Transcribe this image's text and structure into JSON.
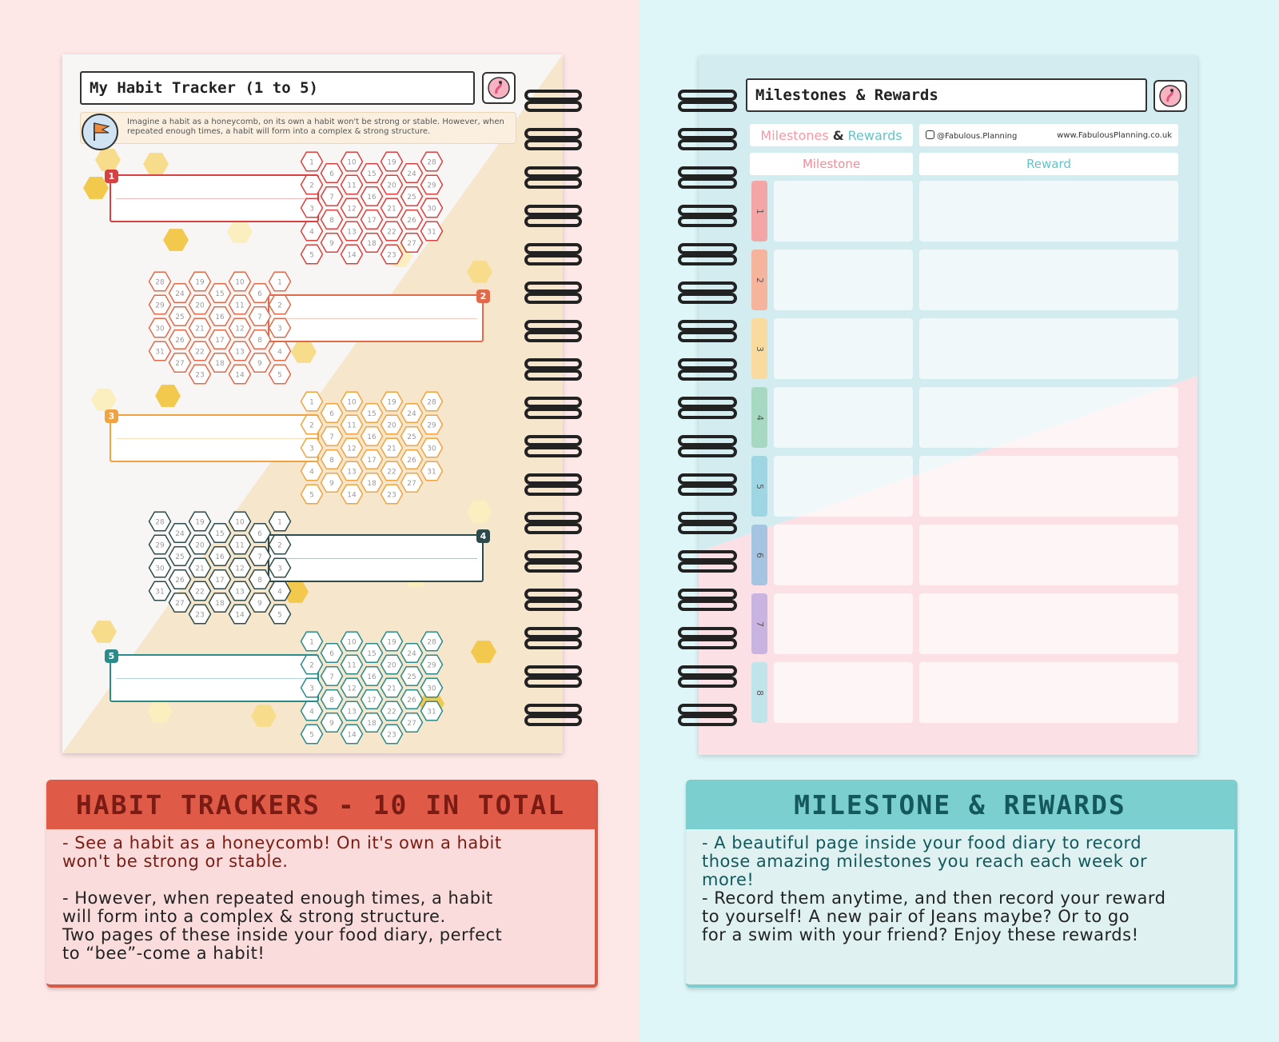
{
  "left_page": {
    "title": "My Habit Tracker (1 to 5)",
    "intro": "Imagine a habit as a honeycomb, on its own a habit won't be strong or stable. However, when repeated enough times, a habit will form into a complex & strong structure.",
    "trackers": [
      {
        "number": "1",
        "color": "#d8413f"
      },
      {
        "number": "2",
        "color": "#e06a4a"
      },
      {
        "number": "3",
        "color": "#f0a340"
      },
      {
        "number": "4",
        "color": "#2f4a4a"
      },
      {
        "number": "5",
        "color": "#2b8a8a"
      }
    ],
    "days": [
      "1",
      "2",
      "3",
      "4",
      "5",
      "6",
      "7",
      "8",
      "9",
      "10",
      "11",
      "12",
      "13",
      "14",
      "15",
      "16",
      "17",
      "18",
      "19",
      "20",
      "21",
      "22",
      "23",
      "24",
      "25",
      "26",
      "27",
      "28",
      "29",
      "30",
      "31"
    ]
  },
  "right_page": {
    "title": "Milestones & Rewards",
    "subtitle_milestones": "Milestones",
    "subtitle_amp": "&",
    "subtitle_rewards": "Rewards",
    "instagram": "@Fabulous.Planning",
    "website": "www.FabulousPlanning.co.uk",
    "col_milestone": "Milestone",
    "col_reward": "Reward",
    "rows": [
      {
        "number": "1",
        "color": "#f4a6a6"
      },
      {
        "number": "2",
        "color": "#f7b49c"
      },
      {
        "number": "3",
        "color": "#f9dba0"
      },
      {
        "number": "4",
        "color": "#a7d9c2"
      },
      {
        "number": "5",
        "color": "#9fd6e4"
      },
      {
        "number": "6",
        "color": "#a4c4e2"
      },
      {
        "number": "7",
        "color": "#c9b3e0"
      },
      {
        "number": "8",
        "color": "#bfe5ea"
      }
    ]
  },
  "panel_left": {
    "heading": "HABIT TRACKERS - 10 IN TOTAL",
    "para1": "- See a habit as a honeycomb! On it's own a habit\nwon't be strong or stable.",
    "para2": "- However, when repeated enough times, a habit\nwill form into a complex & strong structure.\nTwo pages of these inside your food diary, perfect\nto “bee”-come a habit!"
  },
  "panel_right": {
    "heading": "MILESTONE & REWARDS",
    "para1": "- A beautiful page inside your food diary to record\nthose amazing milestones you reach each week or\nmore!",
    "para2": "- Record them anytime, and then record your reward\nto yourself! A new pair of Jeans maybe? Or to go\nfor a swim with your friend? Enjoy these rewards!"
  },
  "colors": {
    "left_bg": "#fde7e7",
    "right_bg": "#def6f7",
    "honey": "#f2c94c",
    "left_accent": "#e05a48",
    "right_accent": "#7ccfcf"
  }
}
